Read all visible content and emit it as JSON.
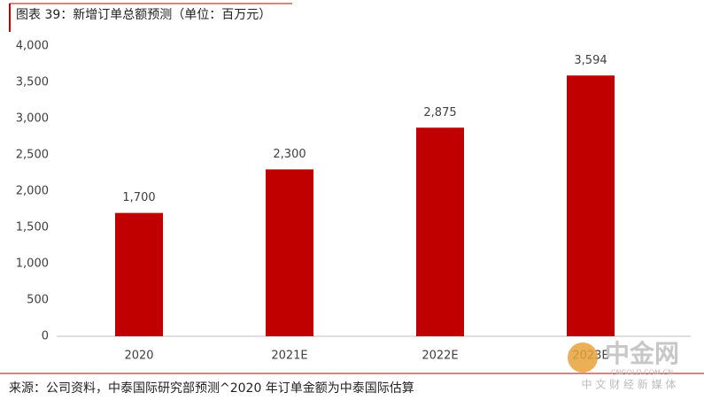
{
  "chart_data": {
    "type": "bar",
    "title": "图表 39：新增订单总额预测（单位：百万元）",
    "categories": [
      "2020",
      "2021E",
      "2022E",
      "2023E"
    ],
    "values": [
      1700,
      2300,
      2875,
      3594
    ],
    "value_labels": [
      "1,700",
      "2,300",
      "2,875",
      "3,594"
    ],
    "color": "#c00000",
    "ylim": [
      0,
      4000
    ],
    "yticks": [
      0,
      500,
      {
        "value": 1000,
        "label": "1,000"
      },
      {
        "value": 1500,
        "label": "1,500"
      },
      {
        "value": 2000,
        "label": "2,000"
      },
      {
        "value": 2500,
        "label": "2,500"
      },
      {
        "value": 3000,
        "label": "3,000"
      },
      {
        "value": 3500,
        "label": "3,500"
      },
      {
        "value": 4000,
        "label": "4,000"
      }
    ],
    "grid": false,
    "source": "来源：公司资料，中泰国际研究部预测^2020 年订单金额为中泰国际估算",
    "watermark": {
      "logo": "中金网",
      "url": "CNGOLD.COM.CN",
      "tagline": "中 文 财 经 新 媒 体"
    }
  }
}
